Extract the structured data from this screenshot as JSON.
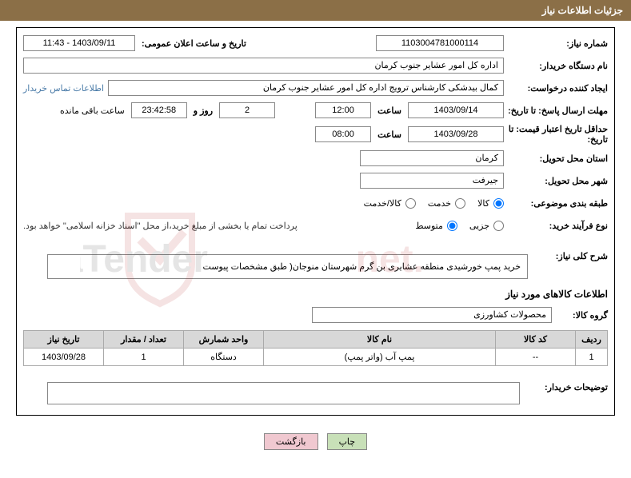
{
  "header_title": "جزئیات اطلاعات نیاز",
  "labels": {
    "need_number": "شماره نیاز:",
    "announce_datetime": "تاریخ و ساعت اعلان عمومی:",
    "buyer_org": "نام دستگاه خریدار:",
    "requester": "ایجاد کننده درخواست:",
    "contact_info": "اطلاعات تماس خریدار",
    "response_deadline": "مهلت ارسال پاسخ: تا تاریخ:",
    "hour": "ساعت",
    "days_and": "روز و",
    "time_remaining": "ساعت باقی مانده",
    "price_validity": "حداقل تاریخ اعتبار قیمت: تا تاریخ:",
    "delivery_province": "استان محل تحویل:",
    "delivery_city": "شهر محل تحویل:",
    "category": "طبقه بندی موضوعی:",
    "process_type": "نوع فرآیند خرید:",
    "treasury_note": "پرداخت تمام یا بخشی از مبلغ خرید،از محل \"اسناد خزانه اسلامی\" خواهد بود.",
    "general_desc": "شرح کلی نیاز:",
    "goods_info": "اطلاعات کالاهای مورد نیاز",
    "goods_group": "گروه کالا:",
    "buyer_notes": "توضیحات خریدار:"
  },
  "values": {
    "need_number": "1103004781000114",
    "announce_datetime": "1403/09/11 - 11:43",
    "buyer_org": "اداره کل امور عشایر جنوب کرمان",
    "requester": "کمال بیدشکی کارشناس ترویج اداره کل امور عشایر جنوب کرمان",
    "response_date": "1403/09/14",
    "response_time": "12:00",
    "days_remaining": "2",
    "time_remaining": "23:42:58",
    "validity_date": "1403/09/28",
    "validity_time": "08:00",
    "province": "کرمان",
    "city": "جیرفت",
    "general_desc": "خرید پمپ  خورشیدی منطقه عشایری بن گرم شهرستان منوجان( طبق مشخصات پیوست",
    "goods_group": "محصولات کشاورزی"
  },
  "radios": {
    "category": {
      "goods": "کالا",
      "service": "خدمت",
      "both": "کالا/خدمت"
    },
    "process": {
      "small": "جزیی",
      "medium": "متوسط"
    }
  },
  "table": {
    "headers": [
      "ردیف",
      "کد کالا",
      "نام کالا",
      "واحد شمارش",
      "تعداد / مقدار",
      "تاریخ نیاز"
    ],
    "rows": [
      [
        "1",
        "--",
        "پمپ آب (واتر پمپ)",
        "دستگاه",
        "1",
        "1403/09/28"
      ]
    ]
  },
  "buttons": {
    "print": "چاپ",
    "back": "بازگشت"
  },
  "watermark_colors": {
    "shield_stroke": "#b02020",
    "text_color": "#333333"
  }
}
